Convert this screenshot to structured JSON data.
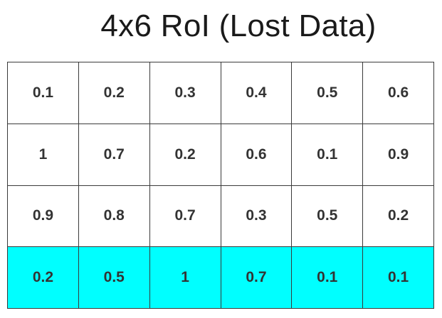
{
  "title": "4x6 RoI (Lost Data)",
  "highlight_color": "#00ffff",
  "highlighted_row": 3,
  "rows": [
    [
      "0.1",
      "0.2",
      "0.3",
      "0.4",
      "0.5",
      "0.6"
    ],
    [
      "1",
      "0.7",
      "0.2",
      "0.6",
      "0.1",
      "0.9"
    ],
    [
      "0.9",
      "0.8",
      "0.7",
      "0.3",
      "0.5",
      "0.2"
    ],
    [
      "0.2",
      "0.5",
      "1",
      "0.7",
      "0.1",
      "0.1"
    ]
  ]
}
